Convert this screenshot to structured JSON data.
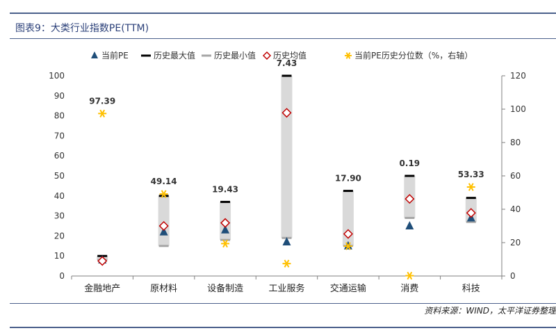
{
  "header": {
    "title": "图表9：大类行业指数PE(TTM)"
  },
  "footer": {
    "source": "资料来源：WIND，太平洋证券整理"
  },
  "colors": {
    "current_pe": "#1f4e79",
    "max": "#000000",
    "min": "#a6a6a6",
    "avg": "#c00000",
    "pct": "#ffc000",
    "range": "#d9d9d9"
  },
  "chart_data": {
    "type": "scatter",
    "categories": [
      "金融地产",
      "原材料",
      "设备制造",
      "工业服务",
      "交通运输",
      "消费",
      "科技"
    ],
    "legend": [
      "当前PE",
      "历史最大值",
      "历史最小值",
      "历史均值",
      "当前PE历史分位数（%，右轴）"
    ],
    "legend_position": "top",
    "y_left": {
      "min": 0,
      "max": 100,
      "ticks": [
        "0",
        "10",
        "20",
        "30",
        "40",
        "50",
        "60",
        "70",
        "80",
        "90",
        "100"
      ]
    },
    "y_right": {
      "min": 0,
      "max": 120,
      "ticks": [
        "0",
        "20",
        "40",
        "60",
        "80",
        "100",
        "120"
      ]
    },
    "series": {
      "current_pe": [
        8,
        22,
        23,
        17,
        15,
        25,
        29
      ],
      "max": [
        10,
        40,
        37,
        100,
        42.5,
        50,
        39
      ],
      "min": [
        8,
        15,
        18,
        19,
        15,
        29,
        27
      ],
      "avg": [
        7.5,
        25,
        26.5,
        81.5,
        21,
        38.5,
        31.5
      ],
      "percentile": [
        97.39,
        49.14,
        19.43,
        7.43,
        17.9,
        0.19,
        53.33
      ]
    },
    "percentile_labels": [
      "97.39",
      "49.14",
      "19.43",
      "7.43",
      "17.90",
      "0.19",
      "53.33"
    ],
    "grid": false
  }
}
